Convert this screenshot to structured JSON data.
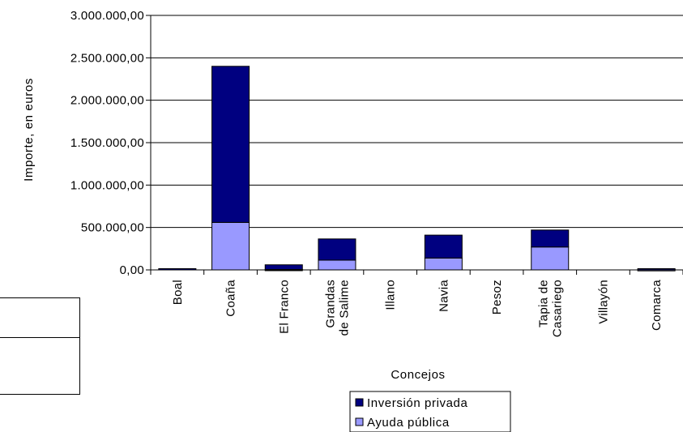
{
  "chart_data": {
    "type": "bar",
    "stacked": true,
    "categories": [
      [
        "Boal"
      ],
      [
        "Coaña"
      ],
      [
        "El Franco"
      ],
      [
        "Grandas",
        "de Salime"
      ],
      [
        "Illano"
      ],
      [
        "Navia"
      ],
      [
        "Pesoz"
      ],
      [
        "Tapia de",
        "Casariego"
      ],
      [
        "Villayón"
      ],
      [
        "Comarca"
      ]
    ],
    "series": [
      {
        "name": "Ayuda pública",
        "color": "#9999ff",
        "values": [
          0,
          560000,
          5000,
          115000,
          0,
          140000,
          0,
          270000,
          0,
          3000
        ]
      },
      {
        "name": "Inversión privada",
        "color": "#000080",
        "values": [
          15000,
          1840000,
          55000,
          250000,
          0,
          270000,
          0,
          200000,
          0,
          12000
        ]
      }
    ],
    "ylim": [
      0,
      3000000
    ],
    "y_ticks": [
      "0,00",
      "500.000,00",
      "1.000.000,00",
      "1.500.000,00",
      "2.000.000,00",
      "2.500.000,00",
      "3.000.000,00"
    ],
    "ylabel": "Importe, en euros",
    "xlabel": "Concejos",
    "grid": true,
    "legend_position": "bottom",
    "legend_order": [
      "Inversión privada",
      "Ayuda pública"
    ]
  }
}
